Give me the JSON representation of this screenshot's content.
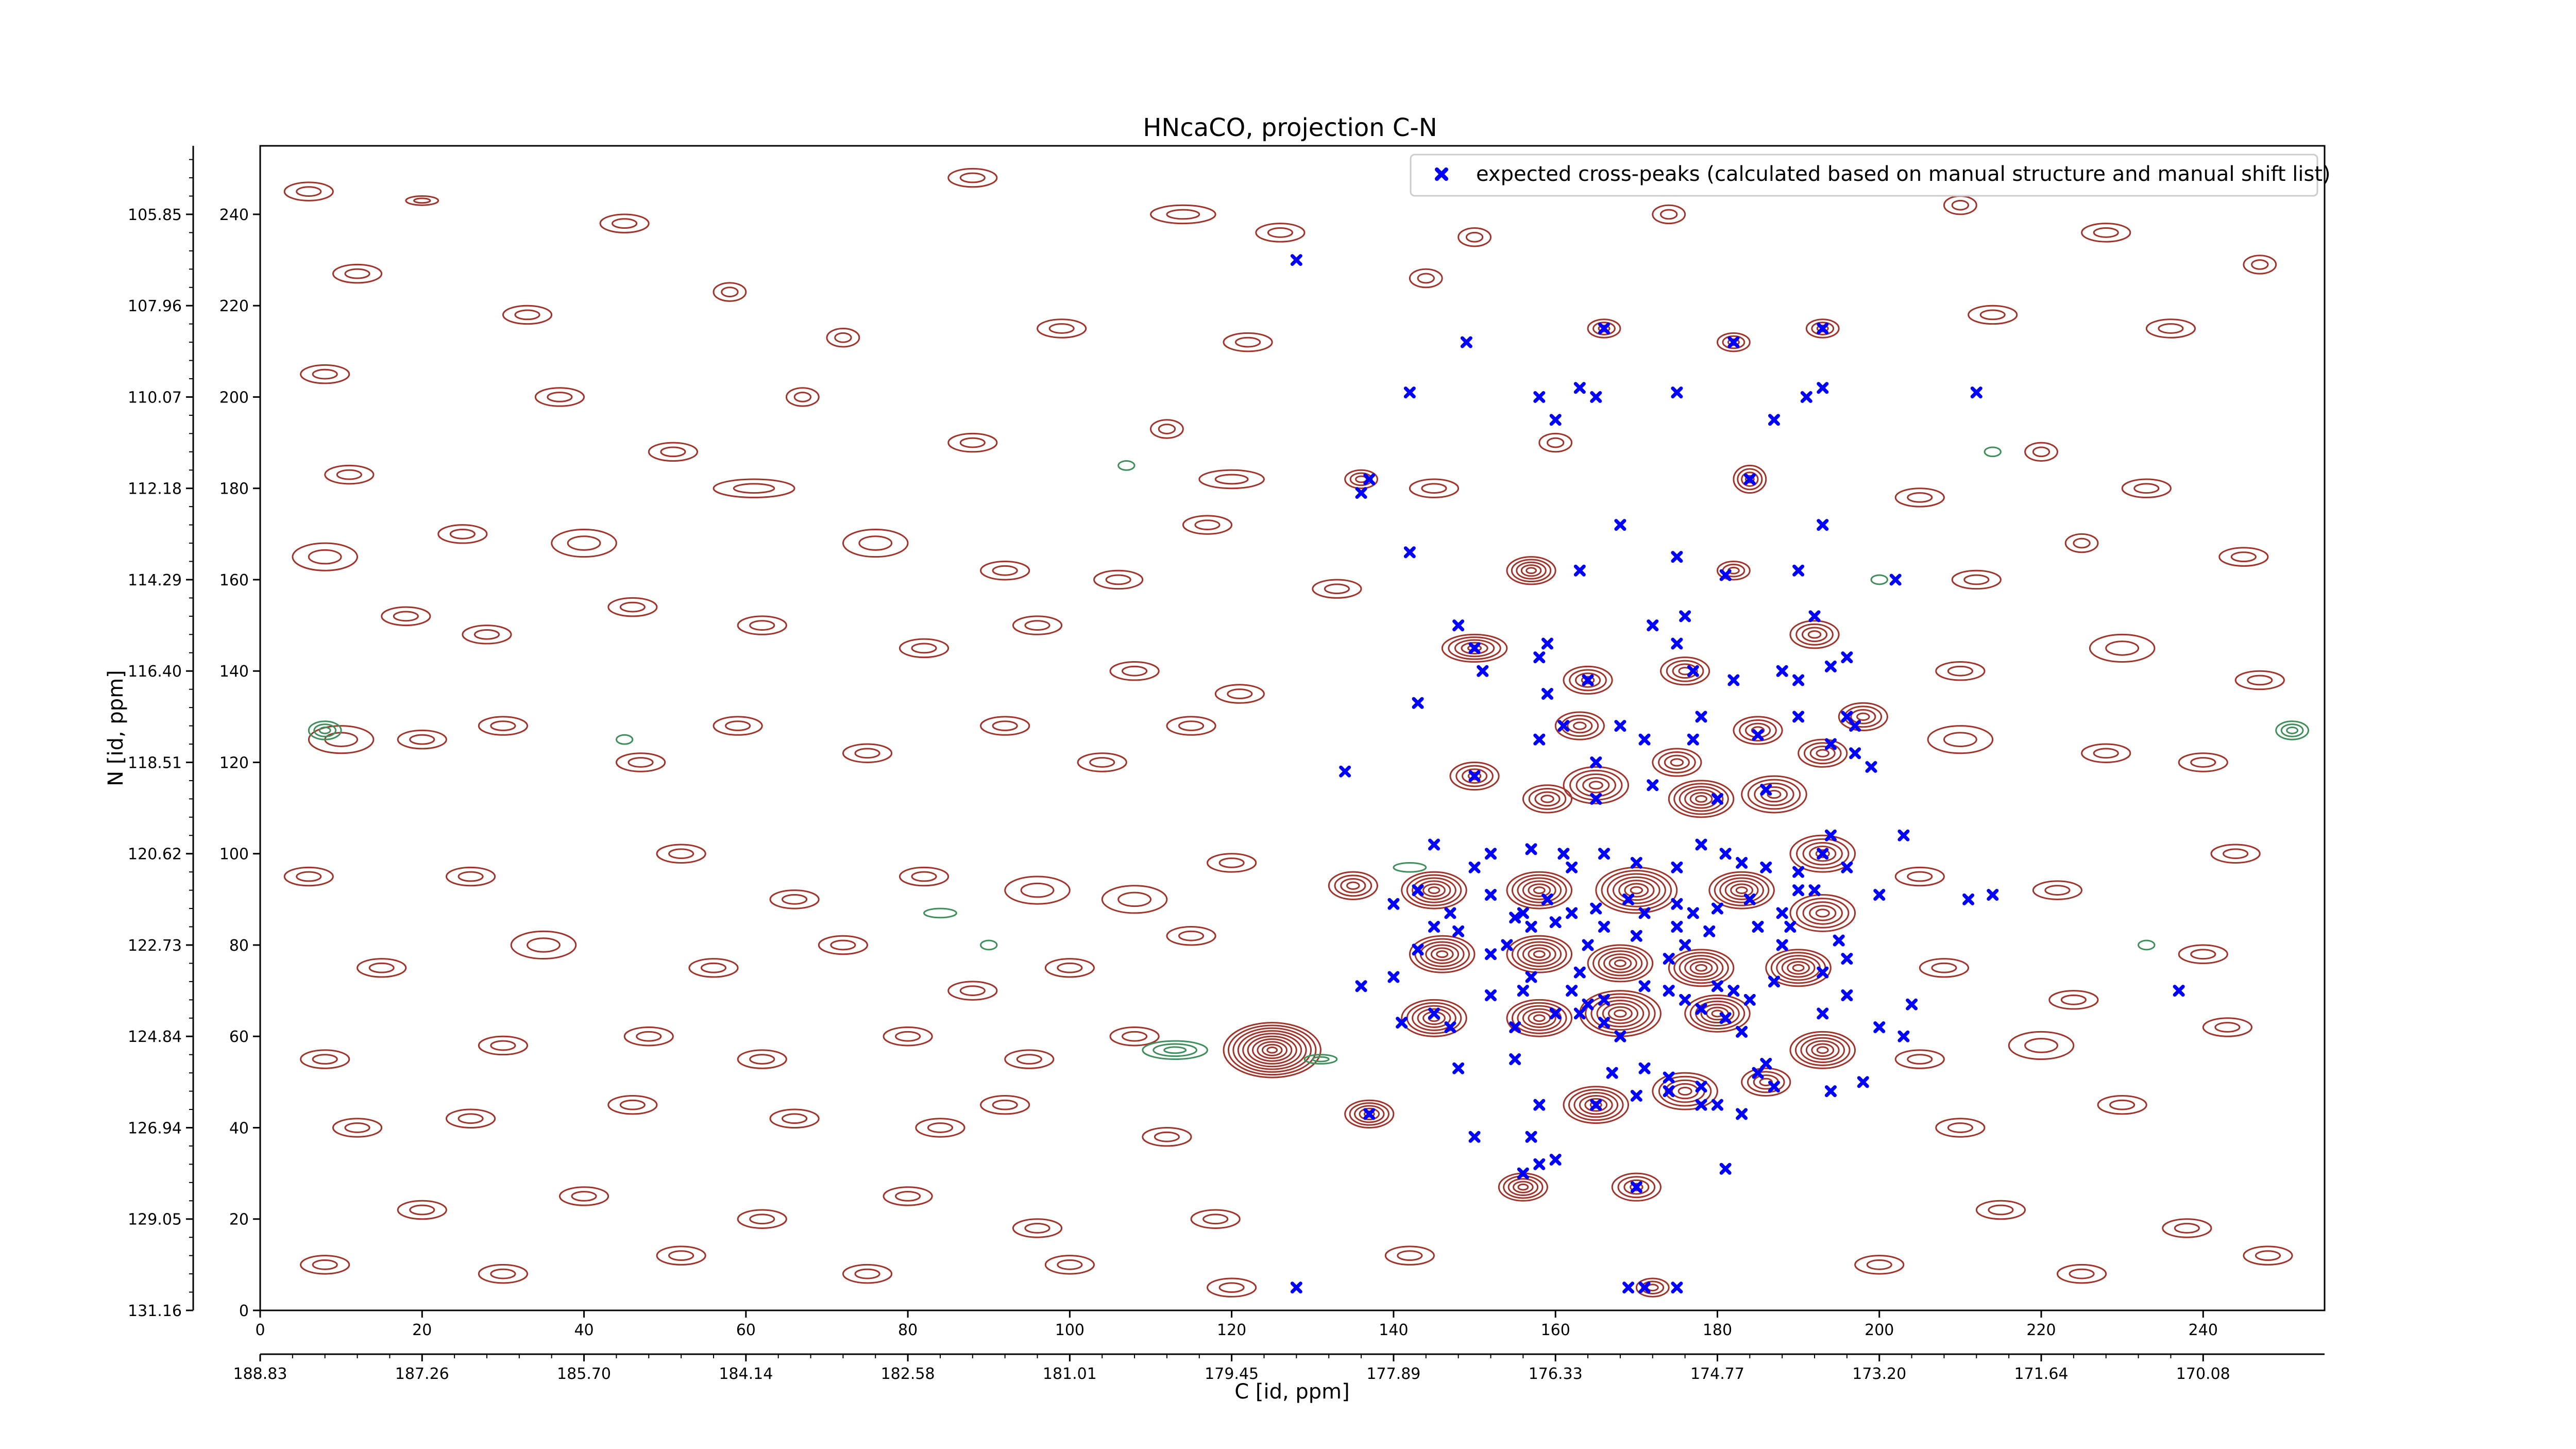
{
  "chart_data": {
    "type": "scatter",
    "title": "HNcaCO, projection C-N",
    "xlabel": "C [id, ppm]",
    "ylabel": "N [id, ppm]",
    "xlim": [
      0,
      255
    ],
    "ylim": [
      0,
      255
    ],
    "x_ticks": [
      0,
      20,
      40,
      60,
      80,
      100,
      120,
      140,
      160,
      180,
      200,
      220,
      240
    ],
    "y_ticks": [
      0,
      20,
      40,
      60,
      80,
      100,
      120,
      140,
      160,
      180,
      200,
      220,
      240
    ],
    "secondary_x_ticks": [
      {
        "at": 0,
        "label": "188.83"
      },
      {
        "at": 20,
        "label": "187.26"
      },
      {
        "at": 40,
        "label": "185.70"
      },
      {
        "at": 60,
        "label": "184.14"
      },
      {
        "at": 80,
        "label": "182.58"
      },
      {
        "at": 100,
        "label": "181.01"
      },
      {
        "at": 120,
        "label": "179.45"
      },
      {
        "at": 140,
        "label": "177.89"
      },
      {
        "at": 160,
        "label": "176.33"
      },
      {
        "at": 180,
        "label": "174.77"
      },
      {
        "at": 200,
        "label": "173.20"
      },
      {
        "at": 220,
        "label": "171.64"
      },
      {
        "at": 240,
        "label": "170.08"
      }
    ],
    "secondary_y_ticks": [
      {
        "at": 0,
        "label": "131.16"
      },
      {
        "at": 20,
        "label": "129.05"
      },
      {
        "at": 40,
        "label": "126.94"
      },
      {
        "at": 60,
        "label": "124.84"
      },
      {
        "at": 80,
        "label": "122.73"
      },
      {
        "at": 100,
        "label": "120.62"
      },
      {
        "at": 120,
        "label": "118.51"
      },
      {
        "at": 140,
        "label": "116.40"
      },
      {
        "at": 160,
        "label": "114.29"
      },
      {
        "at": 180,
        "label": "112.18"
      },
      {
        "at": 200,
        "label": "110.07"
      },
      {
        "at": 220,
        "label": "107.96"
      },
      {
        "at": 240,
        "label": "105.85"
      }
    ],
    "legend": {
      "position": "top-right",
      "entries": [
        "expected cross-peaks (calculated based on manual structure and manual shift list)"
      ]
    },
    "colors": {
      "contour_positive": "#a0342b",
      "contour_negative": "#3f8f5a",
      "marker": "#0000ff"
    },
    "series": [
      {
        "name": "expected cross-peaks (calculated based on manual structure and manual shift list)",
        "marker": "x",
        "points": [
          [
            128,
            230
          ],
          [
            149,
            212
          ],
          [
            166,
            215
          ],
          [
            182,
            212
          ],
          [
            193,
            215
          ],
          [
            142,
            201
          ],
          [
            158,
            200
          ],
          [
            163,
            202
          ],
          [
            165,
            200
          ],
          [
            160,
            195
          ],
          [
            175,
            201
          ],
          [
            193,
            202
          ],
          [
            191,
            200
          ],
          [
            187,
            195
          ],
          [
            212,
            201
          ],
          [
            137,
            182
          ],
          [
            136,
            179
          ],
          [
            184,
            182
          ],
          [
            193,
            172
          ],
          [
            168,
            172
          ],
          [
            142,
            166
          ],
          [
            163,
            162
          ],
          [
            175,
            165
          ],
          [
            181,
            161
          ],
          [
            202,
            160
          ],
          [
            190,
            162
          ],
          [
            176,
            152
          ],
          [
            172,
            150
          ],
          [
            175,
            146
          ],
          [
            192,
            152
          ],
          [
            196,
            143
          ],
          [
            148,
            150
          ],
          [
            150,
            145
          ],
          [
            159,
            146
          ],
          [
            158,
            143
          ],
          [
            151,
            140
          ],
          [
            177,
            140
          ],
          [
            164,
            138
          ],
          [
            188,
            140
          ],
          [
            190,
            138
          ],
          [
            194,
            141
          ],
          [
            159,
            135
          ],
          [
            182,
            138
          ],
          [
            168,
            128
          ],
          [
            178,
            130
          ],
          [
            143,
            133
          ],
          [
            161,
            128
          ],
          [
            158,
            125
          ],
          [
            165,
            120
          ],
          [
            171,
            125
          ],
          [
            177,
            125
          ],
          [
            185,
            126
          ],
          [
            190,
            130
          ],
          [
            196,
            130
          ],
          [
            194,
            124
          ],
          [
            197,
            122
          ],
          [
            199,
            119
          ],
          [
            197,
            128
          ],
          [
            134,
            118
          ],
          [
            150,
            117
          ],
          [
            165,
            112
          ],
          [
            172,
            115
          ],
          [
            180,
            112
          ],
          [
            186,
            114
          ],
          [
            203,
            104
          ],
          [
            145,
            102
          ],
          [
            152,
            100
          ],
          [
            150,
            97
          ],
          [
            157,
            101
          ],
          [
            161,
            100
          ],
          [
            162,
            97
          ],
          [
            166,
            100
          ],
          [
            170,
            98
          ],
          [
            175,
            97
          ],
          [
            178,
            102
          ],
          [
            181,
            100
          ],
          [
            183,
            98
          ],
          [
            186,
            97
          ],
          [
            190,
            96
          ],
          [
            193,
            100
          ],
          [
            194,
            104
          ],
          [
            196,
            97
          ],
          [
            192,
            92
          ],
          [
            200,
            91
          ],
          [
            211,
            90
          ],
          [
            214,
            91
          ],
          [
            140,
            89
          ],
          [
            143,
            92
          ],
          [
            147,
            87
          ],
          [
            152,
            91
          ],
          [
            156,
            87
          ],
          [
            159,
            90
          ],
          [
            162,
            87
          ],
          [
            165,
            88
          ],
          [
            169,
            90
          ],
          [
            171,
            87
          ],
          [
            175,
            89
          ],
          [
            177,
            87
          ],
          [
            180,
            88
          ],
          [
            184,
            90
          ],
          [
            188,
            87
          ],
          [
            190,
            92
          ],
          [
            145,
            84
          ],
          [
            148,
            83
          ],
          [
            155,
            86
          ],
          [
            157,
            84
          ],
          [
            160,
            85
          ],
          [
            166,
            84
          ],
          [
            170,
            82
          ],
          [
            175,
            84
          ],
          [
            179,
            83
          ],
          [
            185,
            84
          ],
          [
            189,
            84
          ],
          [
            195,
            81
          ],
          [
            143,
            79
          ],
          [
            152,
            78
          ],
          [
            154,
            80
          ],
          [
            164,
            80
          ],
          [
            174,
            77
          ],
          [
            176,
            80
          ],
          [
            188,
            80
          ],
          [
            196,
            77
          ],
          [
            140,
            73
          ],
          [
            157,
            73
          ],
          [
            163,
            74
          ],
          [
            187,
            72
          ],
          [
            193,
            74
          ],
          [
            136,
            71
          ],
          [
            152,
            69
          ],
          [
            156,
            70
          ],
          [
            162,
            70
          ],
          [
            166,
            68
          ],
          [
            171,
            71
          ],
          [
            174,
            70
          ],
          [
            176,
            68
          ],
          [
            180,
            71
          ],
          [
            182,
            70
          ],
          [
            184,
            68
          ],
          [
            196,
            69
          ],
          [
            204,
            67
          ],
          [
            237,
            70
          ],
          [
            141,
            63
          ],
          [
            145,
            65
          ],
          [
            147,
            62
          ],
          [
            155,
            62
          ],
          [
            160,
            65
          ],
          [
            163,
            65
          ],
          [
            164,
            67
          ],
          [
            166,
            63
          ],
          [
            168,
            60
          ],
          [
            178,
            66
          ],
          [
            181,
            64
          ],
          [
            183,
            61
          ],
          [
            193,
            65
          ],
          [
            200,
            62
          ],
          [
            203,
            60
          ],
          [
            148,
            53
          ],
          [
            155,
            55
          ],
          [
            167,
            52
          ],
          [
            171,
            53
          ],
          [
            174,
            51
          ],
          [
            178,
            49
          ],
          [
            185,
            52
          ],
          [
            187,
            49
          ],
          [
            194,
            48
          ],
          [
            198,
            50
          ],
          [
            186,
            54
          ],
          [
            137,
            43
          ],
          [
            158,
            45
          ],
          [
            165,
            45
          ],
          [
            170,
            47
          ],
          [
            174,
            48
          ],
          [
            178,
            45
          ],
          [
            180,
            45
          ],
          [
            183,
            43
          ],
          [
            150,
            38
          ],
          [
            157,
            38
          ],
          [
            156,
            30
          ],
          [
            158,
            32
          ],
          [
            160,
            33
          ],
          [
            170,
            27
          ],
          [
            169,
            5
          ],
          [
            171,
            5
          ],
          [
            175,
            5
          ],
          [
            181,
            31
          ],
          [
            128,
            5
          ]
        ]
      }
    ]
  }
}
